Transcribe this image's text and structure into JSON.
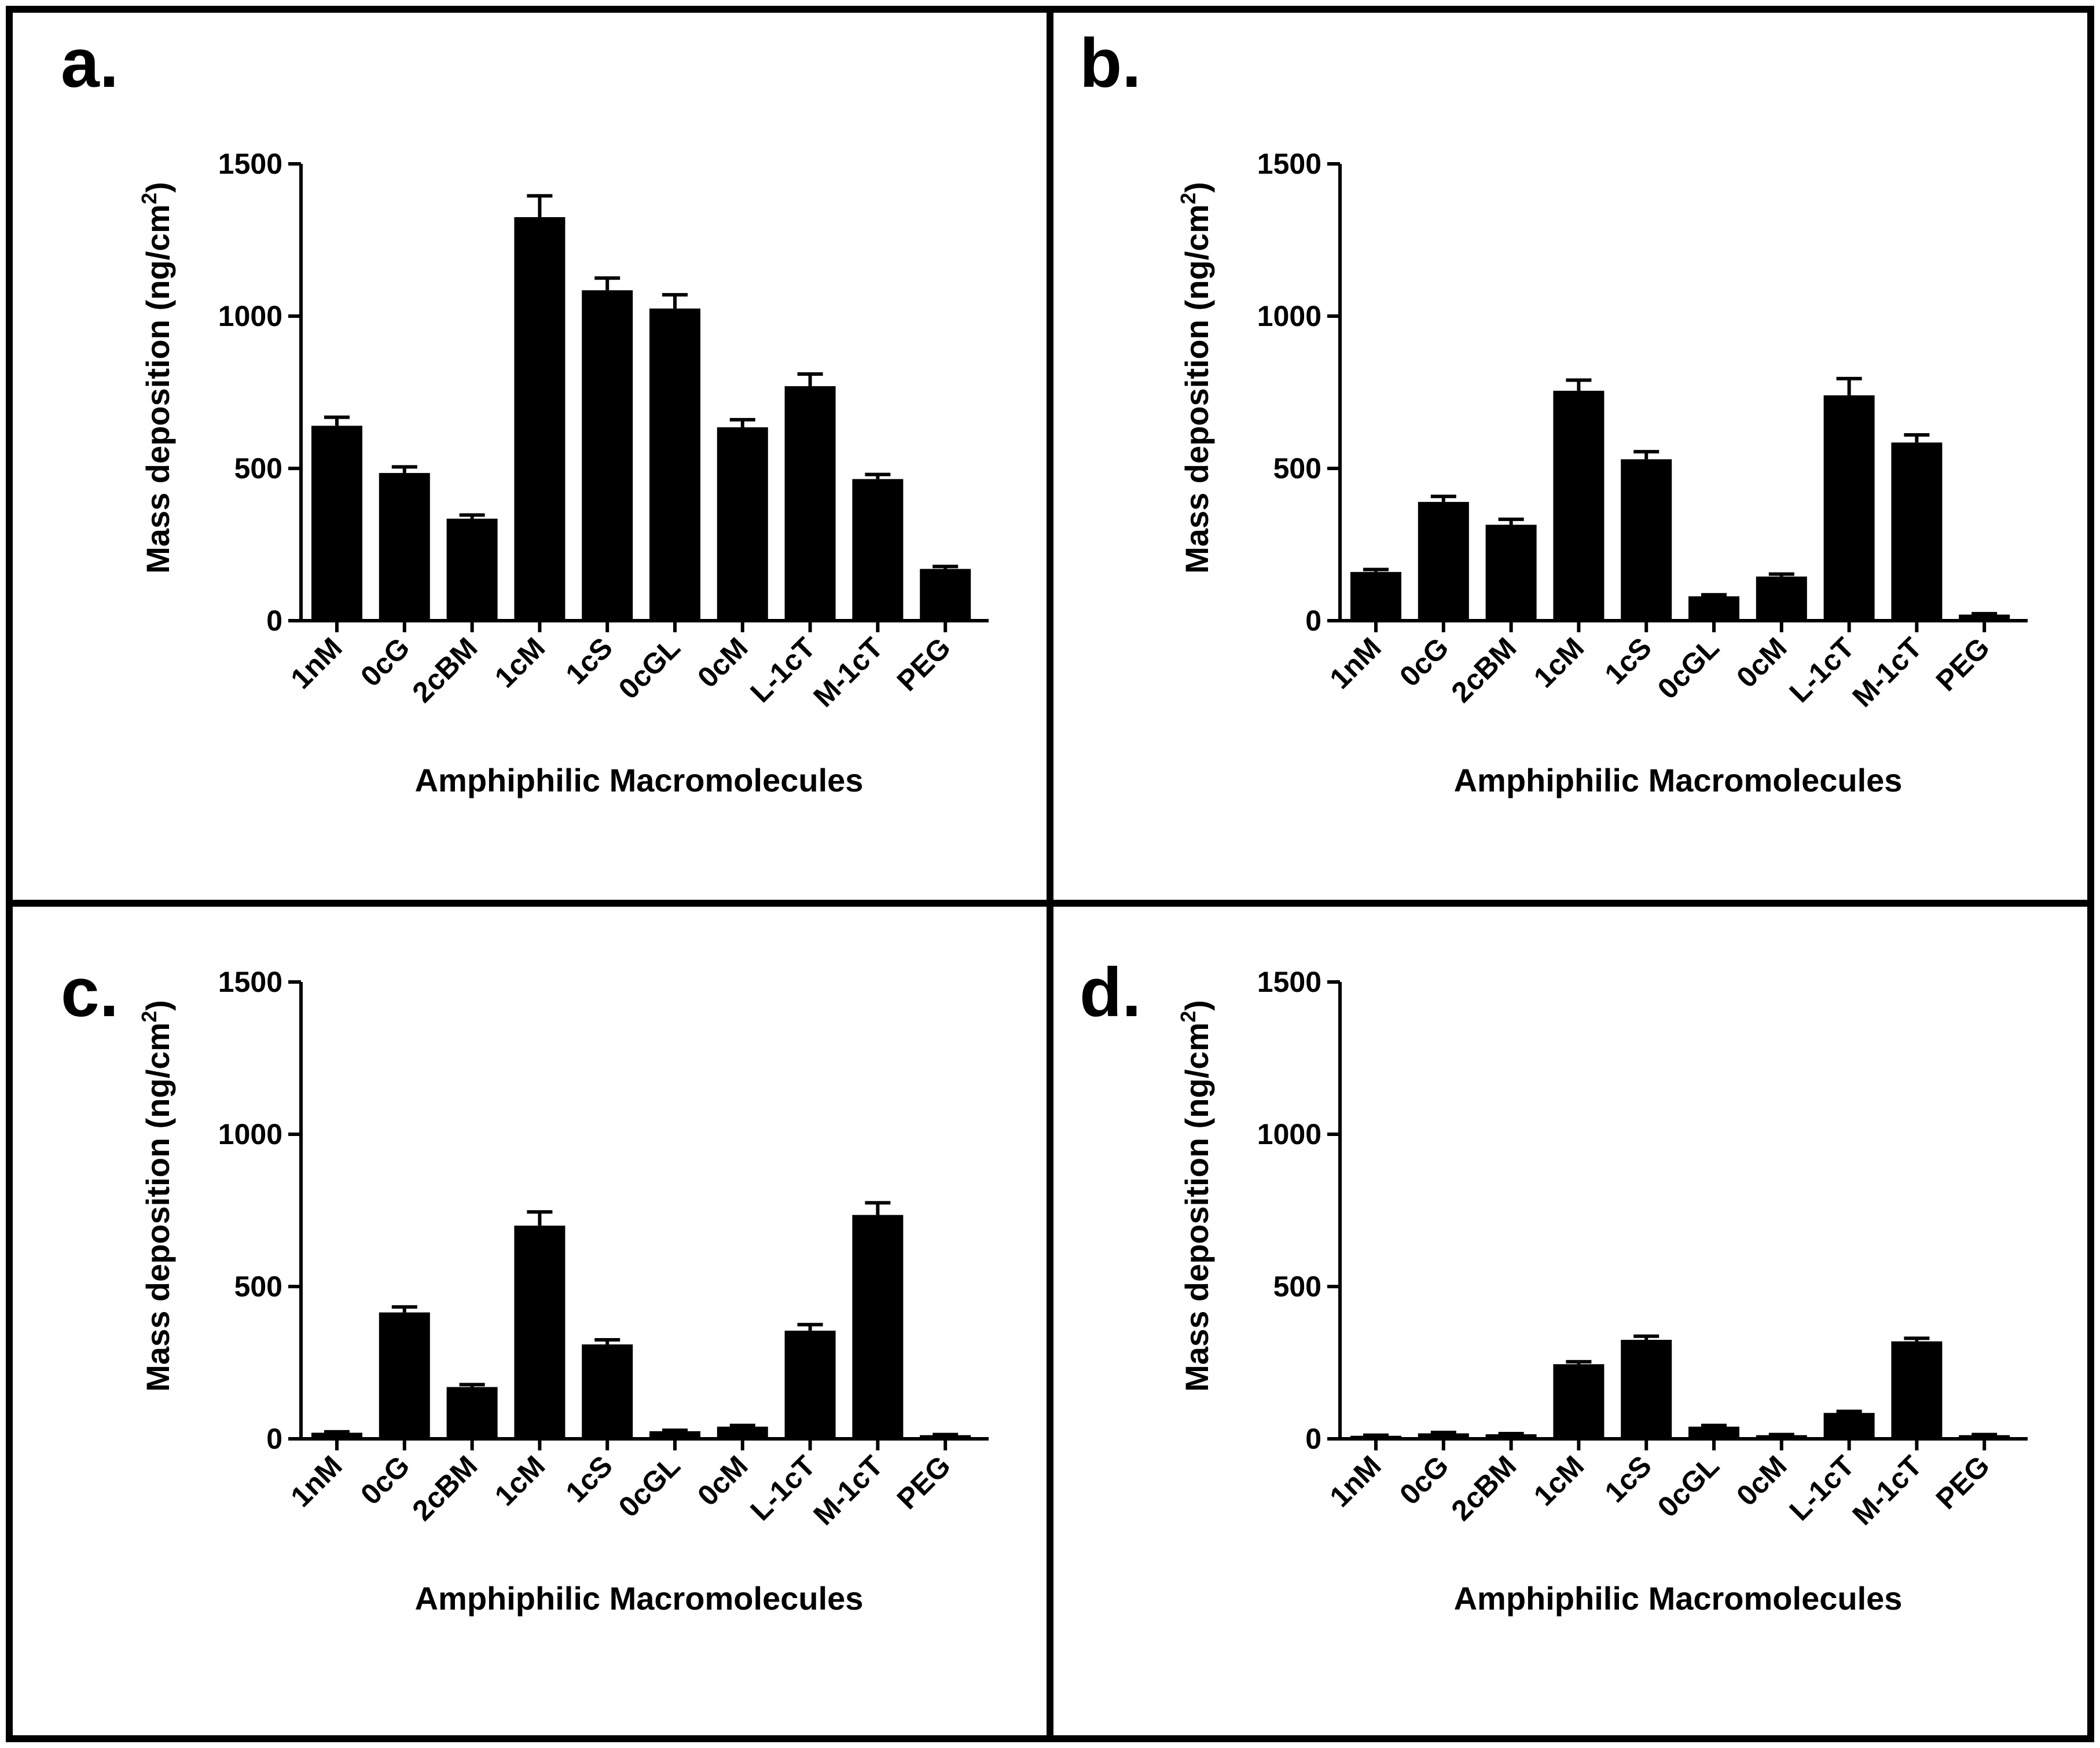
{
  "chart_data": [
    {
      "panel": "a.",
      "type": "bar",
      "categories": [
        "1nM",
        "0cG",
        "2cBM",
        "1cM",
        "1cS",
        "0cGL",
        "0cM",
        "L-1cT",
        "M-1cT",
        "PEG"
      ],
      "values": [
        640,
        485,
        335,
        1325,
        1085,
        1025,
        635,
        770,
        465,
        170
      ],
      "errors": [
        28,
        20,
        12,
        70,
        40,
        45,
        25,
        40,
        15,
        8
      ],
      "xlabel": "Amphiphilic Macromolecules",
      "ylabel": {
        "main": "Mass deposition (ng/cm",
        "sup": "2",
        "close": ")"
      },
      "ylim": [
        0,
        1500
      ],
      "yticks": [
        "0",
        "500",
        "1000",
        "1500"
      ],
      "ytick_values": [
        0,
        500,
        1000,
        1500
      ]
    },
    {
      "panel": "b.",
      "type": "bar",
      "categories": [
        "1nM",
        "0cG",
        "2cBM",
        "1cM",
        "1cS",
        "0cGL",
        "0cM",
        "L-1cT",
        "M-1cT",
        "PEG"
      ],
      "values": [
        160,
        390,
        315,
        755,
        530,
        80,
        145,
        740,
        585,
        20
      ],
      "errors": [
        8,
        18,
        18,
        35,
        25,
        5,
        8,
        55,
        25,
        3
      ],
      "xlabel": "Amphiphilic Macromolecules",
      "ylabel": {
        "main": "Mass deposition (ng/cm",
        "sup": "2",
        "close": ")"
      },
      "ylim": [
        0,
        1500
      ],
      "yticks": [
        "0",
        "500",
        "1000",
        "1500"
      ],
      "ytick_values": [
        0,
        500,
        1000,
        1500
      ]
    },
    {
      "panel": "c.",
      "type": "bar",
      "categories": [
        "1nM",
        "0cG",
        "2cBM",
        "1cM",
        "1cS",
        "0cGL",
        "0cM",
        "L-1cT",
        "M-1cT",
        "PEG"
      ],
      "values": [
        20,
        415,
        170,
        700,
        310,
        25,
        40,
        355,
        735,
        12
      ],
      "errors": [
        3,
        18,
        8,
        45,
        15,
        3,
        4,
        20,
        40,
        2
      ],
      "xlabel": "Amphiphilic Macromolecules",
      "ylabel": {
        "main": "Mass deposition (ng/cm",
        "sup": "2",
        "close": ")"
      },
      "ylim": [
        0,
        1500
      ],
      "yticks": [
        "0",
        "500",
        "1000",
        "1500"
      ],
      "ytick_values": [
        0,
        500,
        1000,
        1500
      ]
    },
    {
      "panel": "d.",
      "type": "bar",
      "categories": [
        "1nM",
        "0cG",
        "2cBM",
        "1cM",
        "1cS",
        "0cGL",
        "0cM",
        "L-1cT",
        "M-1cT",
        "PEG"
      ],
      "values": [
        10,
        18,
        15,
        245,
        325,
        40,
        12,
        85,
        320,
        12
      ],
      "errors": [
        2,
        3,
        2,
        8,
        12,
        4,
        2,
        5,
        10,
        2
      ],
      "xlabel": "Amphiphilic Macromolecules",
      "ylabel": {
        "main": "Mass deposition (ng/cm",
        "sup": "2",
        "close": ")"
      },
      "ylim": [
        0,
        1500
      ],
      "yticks": [
        "0",
        "500",
        "1000",
        "1500"
      ],
      "ytick_values": [
        0,
        500,
        1000,
        1500
      ]
    }
  ]
}
